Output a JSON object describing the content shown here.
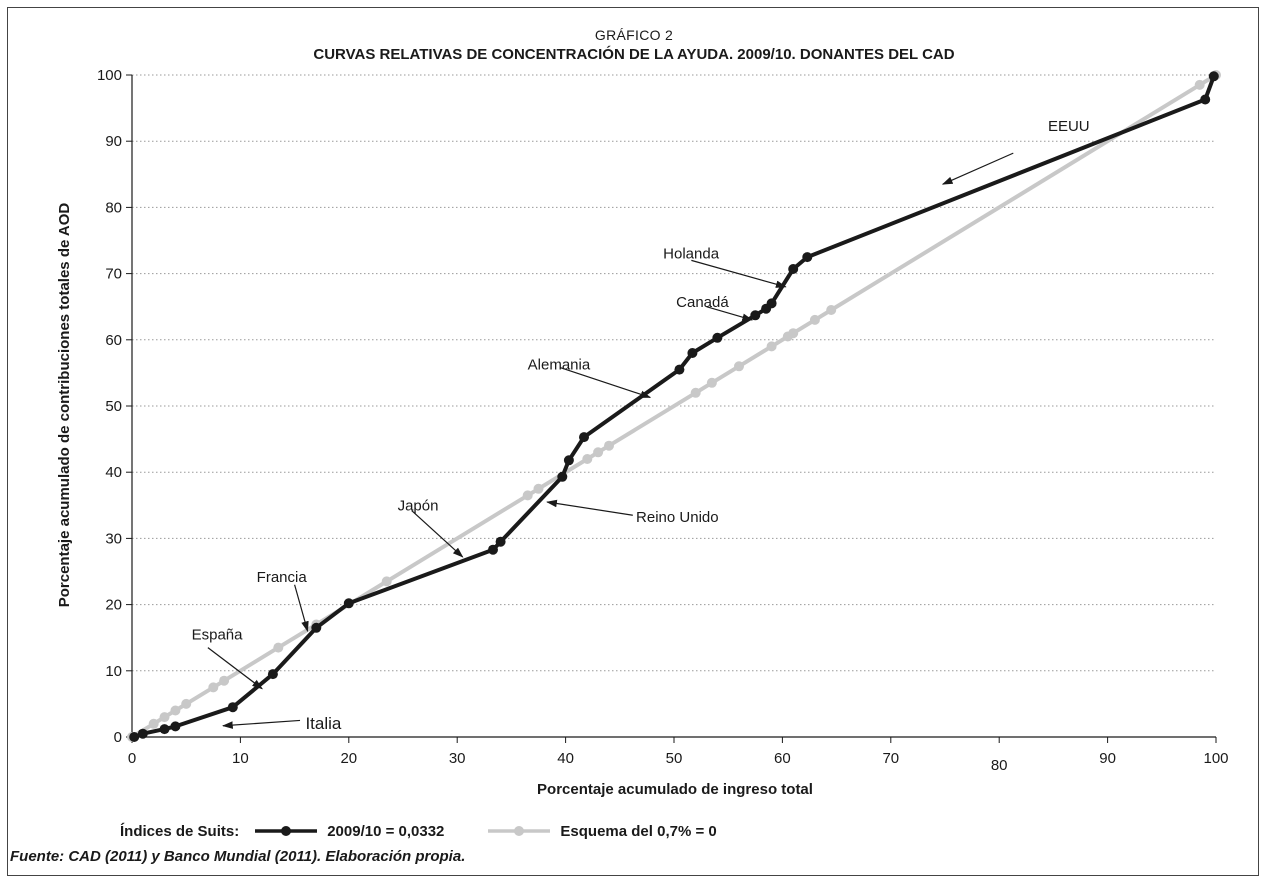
{
  "chart_data": {
    "type": "line",
    "kicker": "GRÁFICO 2",
    "title": "CURVAS RELATIVAS DE CONCENTRACIÓN DE LA AYUDA. 2009/10. DONANTES DEL CAD",
    "xlabel": "Porcentaje acumulado de ingreso total",
    "ylabel": "Porcentaje acumulado de contribuciones totales de AOD",
    "xlim": [
      0,
      100
    ],
    "ylim": [
      0,
      100
    ],
    "x_ticks": [
      "0",
      "10",
      "20",
      "30",
      "40",
      "50",
      "60",
      "70",
      "80",
      "90",
      "100"
    ],
    "y_ticks": [
      "0",
      "10",
      "20",
      "30",
      "40",
      "50",
      "60",
      "70",
      "80",
      "90",
      "100"
    ],
    "grid": "horizontal dotted",
    "series": [
      {
        "name": "2009/10 = 0,0332",
        "color": "#1a1a1a",
        "points": [
          [
            0.2,
            0
          ],
          [
            1,
            0.5
          ],
          [
            3,
            1.2
          ],
          [
            4,
            1.6
          ],
          [
            9.3,
            4.5
          ],
          [
            13,
            9.5
          ],
          [
            17,
            16.5
          ],
          [
            20,
            20.2
          ],
          [
            33.3,
            28.3
          ],
          [
            34,
            29.5
          ],
          [
            39.7,
            39.3
          ],
          [
            40.3,
            41.8
          ],
          [
            41.7,
            45.3
          ],
          [
            50.5,
            55.5
          ],
          [
            51.7,
            58
          ],
          [
            54,
            60.3
          ],
          [
            57.5,
            63.7
          ],
          [
            58.5,
            64.7
          ],
          [
            59,
            65.5
          ],
          [
            61,
            70.7
          ],
          [
            62.3,
            72.5
          ],
          [
            99,
            96.3
          ],
          [
            99.8,
            99.8
          ]
        ]
      },
      {
        "name": "Esquema del 0,7% = 0",
        "color": "#c8c8c8",
        "points": [
          [
            0,
            0
          ],
          [
            2,
            2
          ],
          [
            3,
            3
          ],
          [
            4,
            4
          ],
          [
            5,
            5
          ],
          [
            7.5,
            7.5
          ],
          [
            8.5,
            8.5
          ],
          [
            13.5,
            13.5
          ],
          [
            17,
            17
          ],
          [
            23.5,
            23.5
          ],
          [
            36.5,
            36.5
          ],
          [
            37.5,
            37.5
          ],
          [
            42,
            42
          ],
          [
            43,
            43
          ],
          [
            44,
            44
          ],
          [
            52,
            52
          ],
          [
            53.5,
            53.5
          ],
          [
            56,
            56
          ],
          [
            59,
            59
          ],
          [
            60.5,
            60.5
          ],
          [
            61,
            61
          ],
          [
            63,
            63
          ],
          [
            64.5,
            64.5
          ],
          [
            98.5,
            98.5
          ],
          [
            100,
            100
          ]
        ]
      }
    ],
    "annotations": [
      {
        "text": "EEUU",
        "label_x": 84.5,
        "label_y": 92.3,
        "arrow_from": [
          81.3,
          88.2
        ],
        "arrow_to": [
          74.8,
          83.5
        ]
      },
      {
        "text": "Holanda",
        "label_x": 49,
        "label_y": 73,
        "arrow_from": [
          51.6,
          72
        ],
        "arrow_to": [
          60.3,
          68
        ]
      },
      {
        "text": "Canadá",
        "label_x": 50.2,
        "label_y": 65.7,
        "arrow_from": [
          53,
          65
        ],
        "arrow_to": [
          57.2,
          63
        ]
      },
      {
        "text": "Alemania",
        "label_x": 36.5,
        "label_y": 56.3,
        "arrow_from": [
          39.5,
          55.8
        ],
        "arrow_to": [
          47.8,
          51.3
        ]
      },
      {
        "text": "Reino Unido",
        "label_x": 46.5,
        "label_y": 33.2,
        "arrow_from": [
          46.2,
          33.5
        ],
        "arrow_to": [
          38.3,
          35.5
        ]
      },
      {
        "text": "Japón",
        "label_x": 24.5,
        "label_y": 35,
        "arrow_from": [
          25.8,
          34.2
        ],
        "arrow_to": [
          30.5,
          27.2
        ]
      },
      {
        "text": "Francia",
        "label_x": 11.5,
        "label_y": 24.2,
        "arrow_from": [
          15,
          23
        ],
        "arrow_to": [
          16.2,
          16
        ]
      },
      {
        "text": "España",
        "label_x": 5.5,
        "label_y": 15.5,
        "arrow_from": [
          7,
          13.5
        ],
        "arrow_to": [
          12,
          7.3
        ]
      },
      {
        "text": "Italia",
        "label_x": 16,
        "label_y": 2,
        "arrow_from": [
          15.5,
          2.5
        ],
        "arrow_to": [
          8.4,
          1.7
        ]
      }
    ]
  },
  "legend": {
    "label": "Índices de Suits:",
    "items": [
      {
        "text": "2009/10 = 0,0332",
        "color": "#1a1a1a"
      },
      {
        "text": "Esquema del 0,7% = 0",
        "color": "#c8c8c8"
      }
    ]
  },
  "source": "Fuente: CAD (2011) y Banco Mundial (2011). Elaboración propia."
}
